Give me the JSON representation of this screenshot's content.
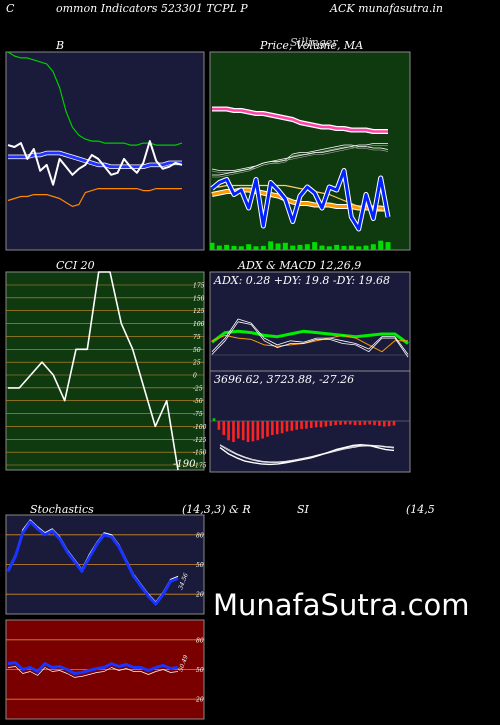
{
  "header": {
    "c": "C",
    "left": "ommon  Indicators 523301 TCPL  P",
    "right": "ACK munafasutra.in"
  },
  "colors": {
    "navy": "#1a1a3a",
    "green": "#0f3a0f",
    "red": "#7a0000",
    "orange": "#ff9900"
  },
  "chart_data": [
    {
      "id": "bb",
      "type": "line",
      "title": "B",
      "series": [
        {
          "values": [
            1.0,
            0.98,
            0.97,
            0.97,
            0.96,
            0.95,
            0.94,
            0.9,
            0.82,
            0.7,
            0.62,
            0.58,
            0.56,
            0.55,
            0.55,
            0.54,
            0.54,
            0.54,
            0.54,
            0.53,
            0.53,
            0.54,
            0.54,
            0.53,
            0.53,
            0.53,
            0.53,
            0.54
          ]
        },
        {
          "values": [
            0.47,
            0.47,
            0.47,
            0.47,
            0.48,
            0.48,
            0.49,
            0.49,
            0.49,
            0.48,
            0.47,
            0.46,
            0.45,
            0.44,
            0.43,
            0.43,
            0.42,
            0.42,
            0.42,
            0.42,
            0.42,
            0.42,
            0.43,
            0.43,
            0.43,
            0.44,
            0.44,
            0.44
          ]
        },
        {
          "values": [
            0.25,
            0.26,
            0.27,
            0.27,
            0.28,
            0.28,
            0.28,
            0.27,
            0.26,
            0.24,
            0.22,
            0.23,
            0.29,
            0.3,
            0.31,
            0.31,
            0.31,
            0.31,
            0.31,
            0.31,
            0.31,
            0.3,
            0.3,
            0.31,
            0.31,
            0.31,
            0.31,
            0.31
          ]
        },
        {
          "values": [
            0.53,
            0.52,
            0.54,
            0.46,
            0.51,
            0.4,
            0.43,
            0.33,
            0.46,
            0.42,
            0.38,
            0.41,
            0.43,
            0.48,
            0.46,
            0.42,
            0.38,
            0.39,
            0.46,
            0.42,
            0.39,
            0.44,
            0.55,
            0.45,
            0.41,
            0.42,
            0.44,
            0.43
          ]
        }
      ]
    },
    {
      "id": "pv",
      "type": "line",
      "title": "Price,  Volume,  MA",
      "overlay": "Sillinger",
      "series": [
        {
          "values": [
            0.42,
            0.41,
            0.41,
            0.41,
            0.42,
            0.43,
            0.44,
            0.46,
            0.47,
            0.47,
            0.48,
            0.52,
            0.53,
            0.53,
            0.54,
            0.55,
            0.56,
            0.57,
            0.58,
            0.58,
            0.57,
            0.57,
            0.56,
            0.56,
            0.55
          ]
        },
        {
          "values": [
            0.38,
            0.38,
            0.39,
            0.4,
            0.41,
            0.42,
            0.44,
            0.46,
            0.47,
            0.48,
            0.49,
            0.5,
            0.51,
            0.52,
            0.53,
            0.53,
            0.54,
            0.55,
            0.56,
            0.57,
            0.58,
            0.58,
            0.59,
            0.59,
            0.59
          ]
        },
        {
          "values": [
            0.25,
            0.26,
            0.27,
            0.27,
            0.28,
            0.28,
            0.27,
            0.26,
            0.25,
            0.24,
            0.22,
            0.2,
            0.19,
            0.19,
            0.18,
            0.18,
            0.18,
            0.17,
            0.17,
            0.17,
            0.16,
            0.16,
            0.16,
            0.16,
            0.15
          ]
        },
        {
          "values": [
            0.3,
            0.3,
            0.31,
            0.31,
            0.31,
            0.31,
            0.31,
            0.31,
            0.31,
            0.31,
            0.31,
            0.3,
            0.29,
            0.28,
            0.27,
            0.26,
            0.25,
            0.23,
            0.21,
            0.19,
            0.17,
            0.15,
            0.14,
            0.14,
            0.14
          ]
        },
        {
          "values": [
            0.82,
            0.82,
            0.82,
            0.81,
            0.81,
            0.8,
            0.79,
            0.79,
            0.78,
            0.77,
            0.76,
            0.75,
            0.73,
            0.72,
            0.71,
            0.7,
            0.7,
            0.69,
            0.69,
            0.68,
            0.68,
            0.68,
            0.67,
            0.67,
            0.67
          ]
        },
        {
          "values": [
            0.29,
            0.33,
            0.35,
            0.25,
            0.28,
            0.16,
            0.35,
            0.04,
            0.33,
            0.28,
            0.22,
            0.07,
            0.24,
            0.3,
            0.26,
            0.16,
            0.3,
            0.28,
            0.41,
            0.1,
            0.02,
            0.25,
            0.09,
            0.36,
            0.1
          ]
        },
        {
          "values": [
            0.3,
            0.1,
            0.15,
            0.08,
            0.05,
            0.2,
            0.05,
            0.08,
            0.4,
            0.25,
            0.3,
            0.1,
            0.15,
            0.2,
            0.35,
            0.1,
            0.05,
            0.15,
            0.08,
            0.1,
            0.05,
            0.1,
            0.2,
            0.45,
            0.35
          ]
        }
      ]
    },
    {
      "id": "cci",
      "type": "line",
      "title": "CCI 20",
      "ylim": [
        -175,
        175
      ],
      "yticks": [
        "175",
        "150",
        "125",
        "100",
        "75",
        "50",
        "25",
        "0",
        "-25",
        "-50",
        "-75",
        "-100",
        "-125",
        "-150",
        "-175"
      ],
      "last_label": "-190",
      "values": [
        -25,
        -25,
        0,
        25,
        0,
        -50,
        50,
        50,
        225,
        225,
        100,
        50,
        -25,
        -100,
        -50,
        -190
      ]
    },
    {
      "id": "adx",
      "type": "line",
      "title": "ADX  & MACD 12,26,9",
      "values_text": "ADX: 0.28  +DY: 19.8  -DY: 19.68",
      "series": [
        {
          "values": [
            49,
            56,
            57,
            56,
            54,
            53,
            55,
            57,
            56,
            55,
            54,
            53,
            54,
            55,
            55,
            48
          ]
        },
        {
          "values": [
            50,
            54,
            52,
            51,
            47,
            46,
            47,
            48,
            50,
            52,
            54,
            52,
            47,
            42,
            50,
            50
          ]
        },
        {
          "values": [
            40,
            50,
            64,
            62,
            50,
            45,
            48,
            48,
            51,
            51,
            48,
            47,
            42,
            52,
            52,
            38
          ]
        },
        {
          "values": [
            42,
            52,
            66,
            63,
            52,
            47,
            50,
            49,
            52,
            52,
            50,
            48,
            44,
            53,
            53,
            40
          ]
        }
      ]
    },
    {
      "id": "macd",
      "type": "bar",
      "values_text": "3696.62,  3723.88,  -27.26",
      "values": [
        8,
        -25,
        -40,
        -55,
        -60,
        -50,
        -55,
        -60,
        -58,
        -55,
        -50,
        -45,
        -40,
        -38,
        -35,
        -30,
        -28,
        -25,
        -23,
        -22,
        -20,
        -18,
        -18,
        -16,
        -14,
        -12,
        -11,
        -10,
        -10,
        -12,
        -12,
        -11,
        -10,
        -12,
        -14,
        -16,
        -15,
        -13
      ],
      "lines": [
        {
          "values": [
            0.45,
            0.3,
            0.2,
            0.12,
            0.08,
            0.05,
            0.04,
            0.05,
            0.08,
            0.12,
            0.16,
            0.2,
            0.26,
            0.33,
            0.4,
            0.45,
            0.5,
            0.52,
            0.5,
            0.45,
            0.4,
            0.38
          ]
        },
        {
          "values": [
            0.5,
            0.38,
            0.28,
            0.2,
            0.14,
            0.1,
            0.08,
            0.08,
            0.1,
            0.13,
            0.17,
            0.21,
            0.26,
            0.31,
            0.36,
            0.41,
            0.45,
            0.48,
            0.49,
            0.48,
            0.46,
            0.44
          ]
        },
        {
          "values": [
            0.52,
            0.41,
            0.3,
            0.22,
            0.16,
            0.12,
            0.1,
            0.1,
            0.12,
            0.15,
            0.19,
            0.23,
            0.28,
            0.33,
            0.38,
            0.43,
            0.47,
            0.5,
            0.51,
            0.5,
            0.48,
            0.46
          ]
        }
      ]
    },
    {
      "id": "stoch",
      "type": "line",
      "title_left": "Stochastics",
      "title_mid": "(14,3,3) & R",
      "ylim": [
        0,
        100
      ],
      "yticks": [
        "80",
        "50",
        "20"
      ],
      "last_label": "34.56",
      "k": [
        45,
        60,
        85,
        95,
        88,
        82,
        86,
        78,
        65,
        55,
        45,
        60,
        72,
        82,
        80,
        70,
        55,
        40,
        30,
        20,
        12,
        22,
        35,
        38
      ],
      "d": [
        43,
        58,
        82,
        93,
        86,
        80,
        84,
        76,
        63,
        53,
        43,
        57,
        70,
        80,
        78,
        68,
        53,
        38,
        28,
        18,
        10,
        20,
        33,
        36
      ]
    },
    {
      "id": "rsi",
      "type": "line",
      "title_left": "SI",
      "title_right": "(14,5",
      "ylim": [
        0,
        100
      ],
      "yticks": [
        "80",
        "50",
        "20"
      ],
      "last_label": "50.49",
      "values": [
        56,
        57,
        50,
        52,
        48,
        56,
        52,
        53,
        50,
        46,
        47,
        49,
        51,
        52,
        56,
        53,
        55,
        52,
        52,
        49,
        52,
        54,
        51,
        52
      ]
    }
  ],
  "watermark": "MunafaSutra.com"
}
